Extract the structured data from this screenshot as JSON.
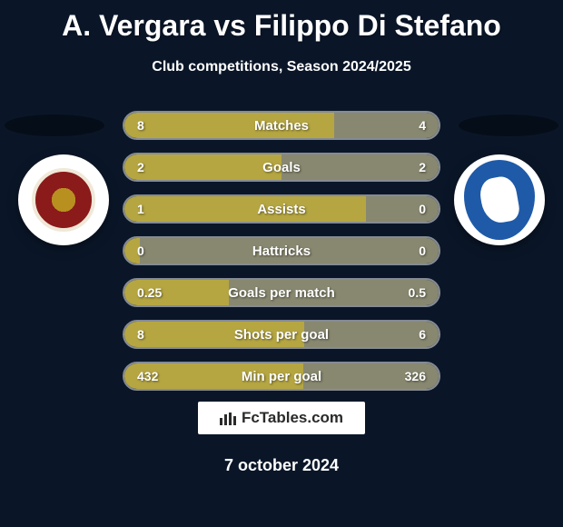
{
  "title": "A. Vergara vs Filippo Di Stefano",
  "subtitle": "Club competitions, Season 2024/2025",
  "date": "7 october 2024",
  "brand": "FcTables.com",
  "colors": {
    "background": "#0a1628",
    "bar_left": "#b5a642",
    "bar_right": "#888870",
    "text": "#ffffff",
    "badge_left_primary": "#8b1a1a",
    "badge_left_secondary": "#b89020",
    "badge_right_primary": "#1e5aa8"
  },
  "stats": [
    {
      "label": "Matches",
      "left_value": "8",
      "right_value": "4",
      "left_pct": 66.7
    },
    {
      "label": "Goals",
      "left_value": "2",
      "right_value": "2",
      "left_pct": 50.0
    },
    {
      "label": "Assists",
      "left_value": "1",
      "right_value": "0",
      "left_pct": 77.0
    },
    {
      "label": "Hattricks",
      "left_value": "0",
      "right_value": "0",
      "left_pct": 5.0
    },
    {
      "label": "Goals per match",
      "left_value": "0.25",
      "right_value": "0.5",
      "left_pct": 33.3
    },
    {
      "label": "Shots per goal",
      "left_value": "8",
      "right_value": "6",
      "left_pct": 57.1
    },
    {
      "label": "Min per goal",
      "left_value": "432",
      "right_value": "326",
      "left_pct": 57.0
    }
  ]
}
